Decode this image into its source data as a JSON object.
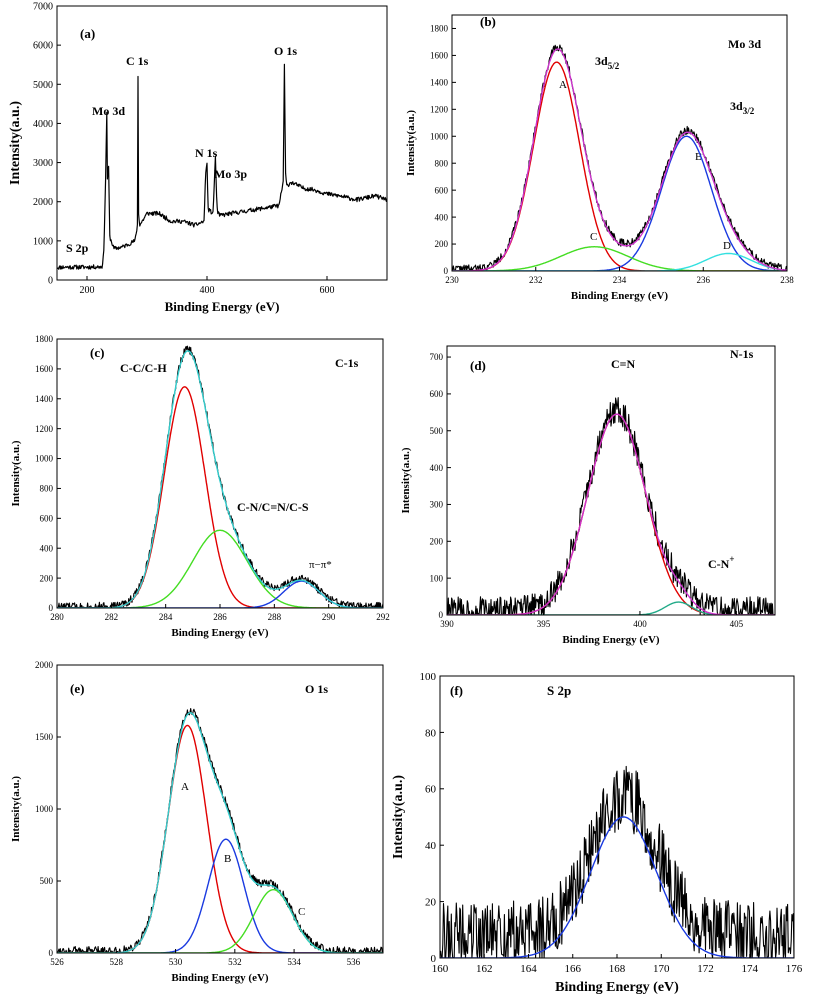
{
  "chart_data": [
    {
      "id": "a",
      "type": "line",
      "panel_label": "(a)",
      "title": "",
      "xlabel": "Binding Energy (eV)",
      "ylabel": "Intensity(a.u.)",
      "xlim": [
        150,
        700
      ],
      "ylim": [
        0,
        7000
      ],
      "xticks": [
        200,
        400,
        600
      ],
      "yticks": [
        0,
        1000,
        2000,
        3000,
        4000,
        5000,
        6000,
        7000
      ],
      "series": [
        {
          "name": "survey",
          "color": "#000000",
          "noise": 55,
          "seed": 11,
          "x": [
            150,
            160,
            200,
            225,
            228,
            231,
            233,
            234,
            236,
            238,
            245,
            260,
            280,
            284,
            285,
            286,
            288,
            292,
            300,
            320,
            340,
            360,
            380,
            395,
            398,
            400,
            402,
            406,
            410,
            414,
            416,
            418,
            422,
            440,
            460,
            480,
            500,
            520,
            527,
            529,
            530,
            531,
            533,
            540,
            560,
            580,
            600,
            620,
            650,
            680,
            700
          ],
          "y": [
            320,
            330,
            330,
            340,
            700,
            2600,
            4300,
            2600,
            2900,
            1100,
            800,
            850,
            1000,
            1400,
            5200,
            1700,
            1400,
            1500,
            1700,
            1700,
            1500,
            1500,
            1400,
            1500,
            2800,
            2950,
            1800,
            1750,
            1700,
            3150,
            2100,
            1700,
            1650,
            1700,
            1750,
            1800,
            1850,
            1900,
            2500,
            5500,
            4000,
            2700,
            2400,
            2500,
            2350,
            2300,
            2200,
            2150,
            2050,
            2150,
            2050
          ]
        }
      ],
      "annotations": [
        "S 2p",
        "Mo 3d",
        "C 1s",
        "N 1s",
        "Mo 3p",
        "O 1s"
      ]
    },
    {
      "id": "b",
      "type": "line",
      "panel_label": "(b)",
      "title": "Mo 3d",
      "xlabel": "Binding Energy (eV)",
      "ylabel": "Intensity(a.u.)",
      "xlim": [
        230,
        238
      ],
      "ylim": [
        0,
        1900
      ],
      "xticks": [
        230,
        232,
        234,
        236,
        238
      ],
      "yticks": [
        0,
        200,
        400,
        600,
        800,
        1000,
        1200,
        1400,
        1600,
        1800
      ],
      "peaks": [
        {
          "name": "A",
          "center": 232.5,
          "height": 1550,
          "sigma": 0.55,
          "color": "#e00000"
        },
        {
          "name": "B",
          "center": 235.6,
          "height": 1000,
          "sigma": 0.6,
          "color": "#1a3ae0"
        },
        {
          "name": "C",
          "center": 233.4,
          "height": 180,
          "sigma": 0.8,
          "color": "#44dd22"
        },
        {
          "name": "D",
          "center": 236.6,
          "height": 130,
          "sigma": 0.55,
          "color": "#33e0e0"
        }
      ],
      "envelope_color": "#cc33cc",
      "raw_noise": 30,
      "seed": 22,
      "baseline": 15,
      "annotations": [
        "A",
        "B",
        "C",
        "D",
        "3d5/2",
        "3d3/2"
      ]
    },
    {
      "id": "c",
      "type": "line",
      "panel_label": "(c)",
      "title": "C-1s",
      "xlabel": "Binding Energy (eV)",
      "ylabel": "Intensity(a.u.)",
      "xlim": [
        280,
        292
      ],
      "ylim": [
        0,
        1800
      ],
      "xticks": [
        280,
        282,
        284,
        286,
        288,
        290,
        292
      ],
      "yticks": [
        0,
        200,
        400,
        600,
        800,
        1000,
        1200,
        1400,
        1600,
        1800
      ],
      "peaks": [
        {
          "name": "C-C/C-H",
          "center": 284.7,
          "height": 1480,
          "sigma": 0.75,
          "color": "#e00000"
        },
        {
          "name": "C-N/C=N/C-S",
          "center": 286.0,
          "height": 520,
          "sigma": 1.0,
          "color": "#44dd22"
        },
        {
          "name": "π−π*",
          "center": 289.0,
          "height": 180,
          "sigma": 0.65,
          "color": "#1a3ae0"
        }
      ],
      "envelope_color": "#33cccc",
      "raw_noise": 28,
      "seed": 33,
      "baseline": 10,
      "annotations": [
        "C-C/C-H",
        "C-N/C=N/C-S",
        "π−π*"
      ]
    },
    {
      "id": "d",
      "type": "line",
      "panel_label": "(d)",
      "title": "N-1s",
      "xlabel": "Binding Energy (eV)",
      "ylabel": "Intensity(a.u.)",
      "xlim": [
        390,
        407
      ],
      "ylim": [
        0,
        730
      ],
      "xticks": [
        390,
        395,
        400,
        405
      ],
      "yticks": [
        0,
        100,
        200,
        300,
        400,
        500,
        600,
        700
      ],
      "peaks": [
        {
          "name": "C=N",
          "center": 398.8,
          "height": 545,
          "sigma": 1.5,
          "color": "#e00000"
        },
        {
          "name": "C-N+",
          "center": 402.0,
          "height": 35,
          "sigma": 0.7,
          "color": "#22aa88"
        }
      ],
      "envelope_color": "#cc33cc",
      "raw_noise": 38,
      "seed": 44,
      "baseline": 12,
      "annotations": [
        "C=N",
        "C-N+"
      ]
    },
    {
      "id": "e",
      "type": "line",
      "panel_label": "(e)",
      "title": "O 1s",
      "xlabel": "Binding Energy (eV)",
      "ylabel": "Intensity(a.u.)",
      "xlim": [
        526,
        537
      ],
      "ylim": [
        0,
        2000
      ],
      "xticks": [
        526,
        528,
        530,
        532,
        534,
        536
      ],
      "yticks": [
        0,
        500,
        1000,
        1500,
        2000
      ],
      "peaks": [
        {
          "name": "A",
          "center": 530.4,
          "height": 1580,
          "sigma": 0.65,
          "color": "#e00000"
        },
        {
          "name": "B",
          "center": 531.7,
          "height": 790,
          "sigma": 0.6,
          "color": "#1a3ae0"
        },
        {
          "name": "C",
          "center": 533.3,
          "height": 440,
          "sigma": 0.65,
          "color": "#44dd22"
        }
      ],
      "envelope_color": "#33cccc",
      "raw_noise": 30,
      "seed": 55,
      "baseline": 15,
      "annotations": [
        "A",
        "B",
        "C"
      ]
    },
    {
      "id": "f",
      "type": "line",
      "panel_label": "(f)",
      "title": "S 2p",
      "xlabel": "Binding Energy (eV)",
      "ylabel": "Intensity(a.u.)",
      "xlim": [
        160,
        176
      ],
      "ylim": [
        0,
        100
      ],
      "xticks": [
        160,
        162,
        164,
        166,
        168,
        170,
        172,
        174,
        176
      ],
      "yticks": [
        0,
        20,
        40,
        60,
        80,
        100
      ],
      "peaks": [
        {
          "name": "S 2p fit",
          "center": 168.3,
          "height": 50,
          "sigma": 1.5,
          "color": "#1a3ae0"
        }
      ],
      "raw_noise": 12,
      "seed": 66,
      "baseline": 8,
      "annotations": []
    }
  ]
}
